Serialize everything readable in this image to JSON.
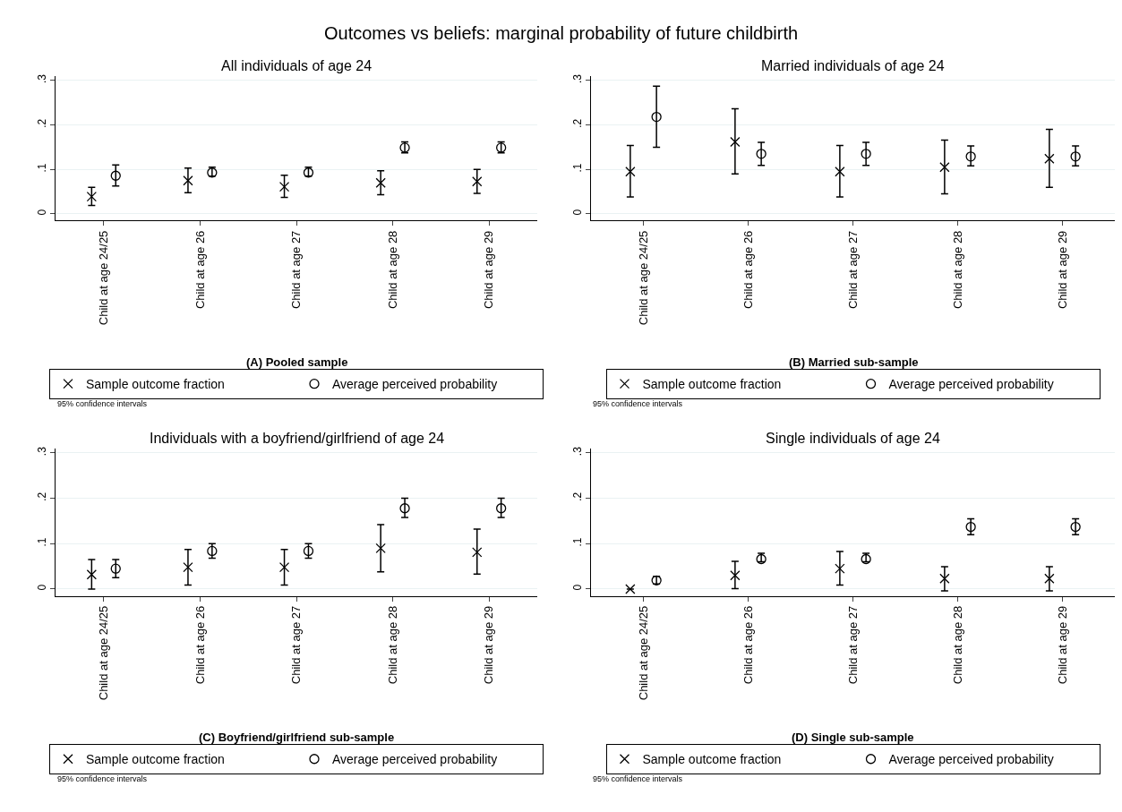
{
  "chart_data": [
    {
      "type": "scatter",
      "title": "All individuals of age 24",
      "categories": [
        "Child at age 24/25",
        "Child at age 26",
        "Child at age 27",
        "Child at age 28",
        "Child at age 29"
      ],
      "series": [
        {
          "name": "Sample outcome fraction",
          "color": "#000000",
          "marker": "cross",
          "values": [
            0.039,
            0.075,
            0.061,
            0.07,
            0.073
          ],
          "errors": [
            [
              0.019,
              0.06
            ],
            [
              0.048,
              0.103
            ],
            [
              0.037,
              0.087
            ],
            [
              0.043,
              0.097
            ],
            [
              0.046,
              0.1
            ]
          ]
        },
        {
          "name": "Average perceived probability",
          "color": "#000000",
          "marker": "circle",
          "values": [
            0.086,
            0.093,
            0.093,
            0.149,
            0.149
          ],
          "errors": [
            [
              0.063,
              0.11
            ],
            [
              0.085,
              0.105
            ],
            [
              0.085,
              0.105
            ],
            [
              0.137,
              0.162
            ],
            [
              0.137,
              0.162
            ]
          ]
        }
      ],
      "ylim": [
        -0.015,
        0.31
      ],
      "yticks": [
        0,
        {
          "value": 0.1,
          "label": ".1"
        },
        {
          "value": 0.2,
          "label": ".2"
        },
        {
          "value": 0.3,
          "label": ".3"
        }
      ],
      "grid": "y",
      "legend": "bottom",
      "annotations": [
        "Outcomes vs beliefs: marginal probability of future childbirth",
        "(A) Pooled sample",
        "95% confidence intervals"
      ]
    },
    {
      "type": "scatter",
      "title": "Married individuals of age 24",
      "categories": [
        "Child at age 24/25",
        "Child at age 26",
        "Child at age 27",
        "Child at age 28",
        "Child at age 29"
      ],
      "series": [
        {
          "name": "Sample outcome fraction",
          "color": "#000000",
          "marker": "cross",
          "values": [
            0.095,
            0.162,
            0.095,
            0.105,
            0.124
          ],
          "errors": [
            [
              0.038,
              0.154
            ],
            [
              0.09,
              0.236
            ],
            [
              0.038,
              0.154
            ],
            [
              0.045,
              0.166
            ],
            [
              0.06,
              0.19
            ]
          ]
        },
        {
          "name": "Average perceived probability",
          "color": "#000000",
          "marker": "circle",
          "values": [
            0.218,
            0.135,
            0.135,
            0.129,
            0.129
          ],
          "errors": [
            [
              0.15,
              0.287
            ],
            [
              0.109,
              0.161
            ],
            [
              0.109,
              0.161
            ],
            [
              0.108,
              0.153
            ],
            [
              0.108,
              0.153
            ]
          ]
        }
      ],
      "ylim": [
        -0.015,
        0.31
      ],
      "yticks": [
        0,
        {
          "value": 0.1,
          "label": ".1"
        },
        {
          "value": 0.2,
          "label": ".2"
        },
        {
          "value": 0.3,
          "label": ".3"
        }
      ],
      "grid": "y",
      "legend": "bottom",
      "annotations": [
        "(B) Married sub-sample",
        "95% confidence intervals"
      ]
    },
    {
      "type": "scatter",
      "title": "Individuals with a boyfriend/girlfriend of age 24",
      "categories": [
        "Child at age 24/25",
        "Child at age 26",
        "Child at age 27",
        "Child at age 28",
        "Child at age 29"
      ],
      "series": [
        {
          "name": "Sample outcome fraction",
          "color": "#000000",
          "marker": "cross",
          "values": [
            0.032,
            0.048,
            0.048,
            0.09,
            0.081
          ],
          "errors": [
            [
              0.0,
              0.065
            ],
            [
              0.009,
              0.087
            ],
            [
              0.009,
              0.087
            ],
            [
              0.038,
              0.142
            ],
            [
              0.033,
              0.132
            ]
          ]
        },
        {
          "name": "Average perceived probability",
          "color": "#000000",
          "marker": "circle",
          "values": [
            0.045,
            0.084,
            0.084,
            0.178,
            0.178
          ],
          "errors": [
            [
              0.025,
              0.065
            ],
            [
              0.068,
              0.1
            ],
            [
              0.068,
              0.1
            ],
            [
              0.158,
              0.2
            ],
            [
              0.158,
              0.2
            ]
          ]
        }
      ],
      "ylim": [
        -0.015,
        0.31
      ],
      "yticks": [
        0,
        {
          "value": 0.1,
          "label": ".1"
        },
        {
          "value": 0.2,
          "label": ".2"
        },
        {
          "value": 0.3,
          "label": ".3"
        }
      ],
      "grid": "y",
      "legend": "bottom",
      "annotations": [
        "(C) Boyfriend/girlfriend sub-sample",
        "95% confidence intervals"
      ]
    },
    {
      "type": "scatter",
      "title": "Single individuals of age 24",
      "categories": [
        "Child at age 24/25",
        "Child at age 26",
        "Child at age 27",
        "Child at age 28",
        "Child at age 29"
      ],
      "series": [
        {
          "name": "Sample outcome fraction",
          "color": "#000000",
          "marker": "cross",
          "values": [
            0.0,
            0.03,
            0.045,
            0.023,
            0.023
          ],
          "errors": [
            null,
            [
              0.001,
              0.061
            ],
            [
              0.009,
              0.083
            ],
            [
              -0.004,
              0.049
            ],
            [
              -0.004,
              0.049
            ]
          ]
        },
        {
          "name": "Average perceived probability",
          "color": "#000000",
          "marker": "circle",
          "values": [
            0.019,
            0.066,
            0.066,
            0.137,
            0.137
          ],
          "errors": [
            [
              0.011,
              0.028
            ],
            [
              0.06,
              0.079
            ],
            [
              0.06,
              0.079
            ],
            [
              0.12,
              0.155
            ],
            [
              0.12,
              0.155
            ]
          ]
        }
      ],
      "ylim": [
        -0.015,
        0.31
      ],
      "yticks": [
        0,
        {
          "value": 0.1,
          "label": ".1"
        },
        {
          "value": 0.2,
          "label": ".2"
        },
        {
          "value": 0.3,
          "label": ".3"
        }
      ],
      "grid": "y",
      "legend": "bottom",
      "annotations": [
        "(D) Single sub-sample",
        "95% confidence intervals"
      ]
    }
  ]
}
